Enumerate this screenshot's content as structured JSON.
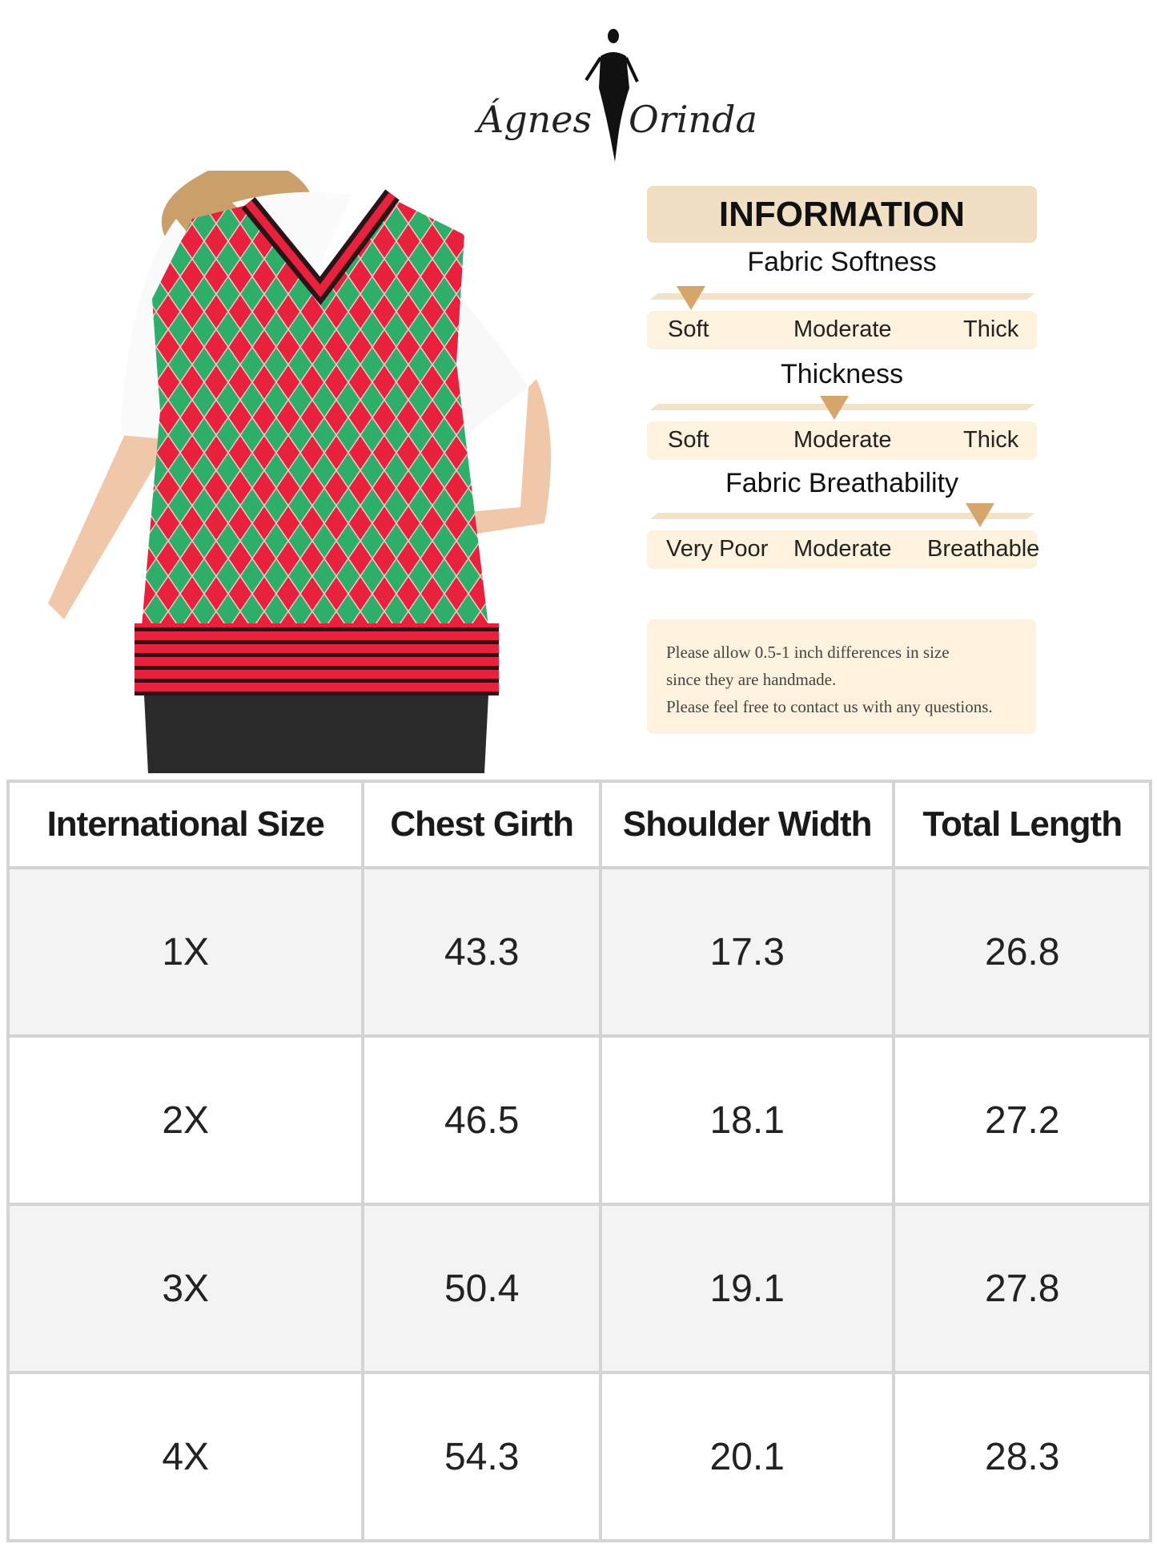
{
  "brand": {
    "left": "Ágnes",
    "right": "Orinda"
  },
  "info": {
    "title": "INFORMATION",
    "scales": [
      {
        "title": "Fabric Softness",
        "labels": [
          "Soft",
          "Moderate",
          "Thick"
        ],
        "selected": "Soft"
      },
      {
        "title": "Thickness",
        "labels": [
          "Soft",
          "Moderate",
          "Thick"
        ],
        "selected": "Moderate"
      },
      {
        "title": "Fabric Breathability",
        "labels": [
          "Very Poor",
          "Moderate",
          "Breathable"
        ],
        "selected": "Breathable"
      }
    ],
    "note": [
      "Please allow 0.5-1 inch differences in size",
      "since they are handmade.",
      "Please feel free to contact us with any questions."
    ]
  },
  "colors": {
    "accent": "#d5a56c",
    "header_bg": "#f0dfc3",
    "band_bg": "#fcf2de",
    "vest_red": "#e8213d",
    "vest_green": "#2fae6a"
  },
  "size_table": {
    "headers": [
      "International Size",
      "Chest Girth",
      "Shoulder Width",
      "Total Length"
    ],
    "rows": [
      [
        "1X",
        "43.3",
        "17.3",
        "26.8"
      ],
      [
        "2X",
        "46.5",
        "18.1",
        "27.2"
      ],
      [
        "3X",
        "50.4",
        "19.1",
        "27.8"
      ],
      [
        "4X",
        "54.3",
        "20.1",
        "28.3"
      ]
    ]
  }
}
